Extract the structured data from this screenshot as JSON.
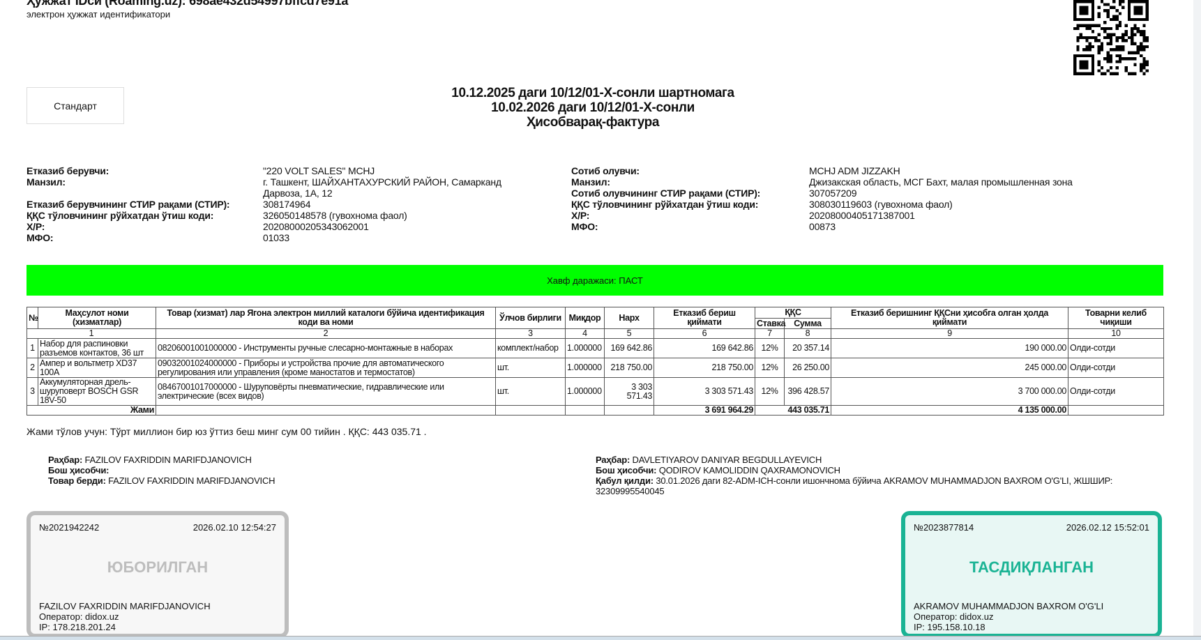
{
  "header": {
    "doc_id": "Ҳужжат IDси (Roaming.uz): 698ae432d54997bffcd7e91a",
    "doc_id_sub": "электрон ҳужжат идентификатори"
  },
  "type_button": "Стандарт",
  "title": {
    "line1": "10.12.2025 даги 10/12/01-X-сонли шартномага",
    "line2": "10.02.2026 даги 10/12/01-X-сонли",
    "line3": "Ҳисобварақ-фактура"
  },
  "seller": {
    "labels": [
      "Етказиб берувчи:",
      "Манзил:",
      "Етказиб берувчининг СТИР рақами  (СТИР):",
      "ҚҚС тўловчининг рўйхатдан ўтиш коди:",
      "Х/Р:",
      "МФО:"
    ],
    "values": [
      "\"220 VOLT SALES\" MCHJ",
      "г. Ташкент, ШАЙХАНТАХУРСКИЙ РАЙОН, Самарканд Дарвоза, 1А, 12",
      "308174964",
      "326050148578 (гувохнома фаол)",
      "20208000205343062001",
      "01033"
    ]
  },
  "buyer": {
    "labels": [
      "Сотиб олувчи:",
      "Манзил:",
      "Сотиб олувчининг СТИР рақами (СТИР):",
      "ҚҚС тўловчининг рўйхатдан ўтиш коди:",
      "Х/Р:",
      "МФО:"
    ],
    "values": [
      "MCHJ ADM JIZZAKH",
      "Джизакская область, МСГ Бахт, малая промышленная зона",
      "307057209",
      "308030119603 (гувохнома фаол)",
      "20208000405171387001",
      "00873"
    ]
  },
  "risk_banner": "Хавф даражаси: ПАСТ",
  "colors": {
    "risk": "#00ff00",
    "sent": "#bdbdbd",
    "approved": "#1ab394"
  },
  "table": {
    "headers": [
      "№",
      "Маҳсулот номи (хизматлар)",
      "Товар (хизмат) лар Ягона электрон миллий каталоги бўйича идентификация коди ва номи",
      "Ўлчов бирлиги",
      "Миқдор",
      "Нарх",
      "Етказиб бериш қиймати",
      "ҚҚС",
      "Етказиб беришнинг ҚҚСни ҳисобга олган ҳолда қиймати",
      "Товарни келиб чиқиши"
    ],
    "vat_sub": [
      "Ставка",
      "Сумма"
    ],
    "col_numbers": [
      "1",
      "2",
      "3",
      "4",
      "5",
      "6",
      "7",
      "8",
      "9",
      "10"
    ],
    "rows": [
      [
        "1",
        "Набор для распиновки разъемов контактов, 36 шт",
        "08206001001000000 - Инструменты ручные слесарно-монтажные в наборах",
        "комплект/набор",
        "1.000000",
        "169 642.86",
        "169 642.86",
        "12%",
        "20 357.14",
        "190 000.00",
        "Олди-сотди"
      ],
      [
        "2",
        "Ампер и вольтметр XD37 100A",
        "09032001024000000 - Приборы и устройства прочие для автоматического регулирования или управления (кроме маностатов и термостатов)",
        "шт.",
        "1.000000",
        "218 750.00",
        "218 750.00",
        "12%",
        "26 250.00",
        "245 000.00",
        "Олди-сотди"
      ],
      [
        "3",
        "Аккумуляторная дрель-шуруповерт BOSCH GSR 18V-50",
        "08467001017000000 - Шуруповёрты пневматические, гидравлические или электрические (всех видов)",
        "шт.",
        "1.000000",
        "3 303 571.43",
        "3 303 571.43",
        "12%",
        "396 428.57",
        "3 700 000.00",
        "Олди-сотди"
      ]
    ],
    "total": {
      "label": "Жами",
      "delivery": "3 691 964.29",
      "vat": "443 035.71",
      "with_vat": "4 135 000.00"
    }
  },
  "total_text": "Жами тўлов учун: Тўрт миллион бир юз ўттиз беш минг сум 00 тийин . ҚҚС: 443 035.71 .",
  "seller_sign": {
    "director_label": "Раҳбар:",
    "director": "FAZILOV FAXRIDDIN MARIFDJANOVICH",
    "accountant_label": "Бош ҳисобчи:",
    "accountant": "",
    "issued_label": "Товар берди:",
    "issued": "FAZILOV FAXRIDDIN MARIFDJANOVICH"
  },
  "buyer_sign": {
    "director_label": "Раҳбар:",
    "director": "DAVLETIYAROV DANIYAR BEGDULLAYEVICH",
    "accountant_label": "Бош ҳисобчи:",
    "accountant": "QODIROV KAMOLIDDIN QAXRAMONOVICH",
    "received_label": "Қабул қилди:",
    "received": "30.01.2026 даги 82-ADM-ICH-сонли ишончнома бўйича AKRAMOV MUHAMMADJON BAXROM O'G'LI, ЖШШИР: 32309995540045"
  },
  "stamp_sent": {
    "number": "№2021942242",
    "datetime": "2026.02.10 12:54:27",
    "status": "ЮБОРИЛГАН",
    "name": "FAZILOV FAXRIDDIN MARIFDJANOVICH",
    "operator": "Оператор: didox.uz",
    "ip": "IP: 178.218.201.24"
  },
  "stamp_approved": {
    "number": "№2023877814",
    "datetime": "2026.02.12 15:52:01",
    "status": "ТАСДИҚЛАНГАН",
    "name": "AKRAMOV MUHAMMADJON BAXROM O'G'LI",
    "operator": "Оператор: didox.uz",
    "ip": "IP: 195.158.10.18"
  }
}
